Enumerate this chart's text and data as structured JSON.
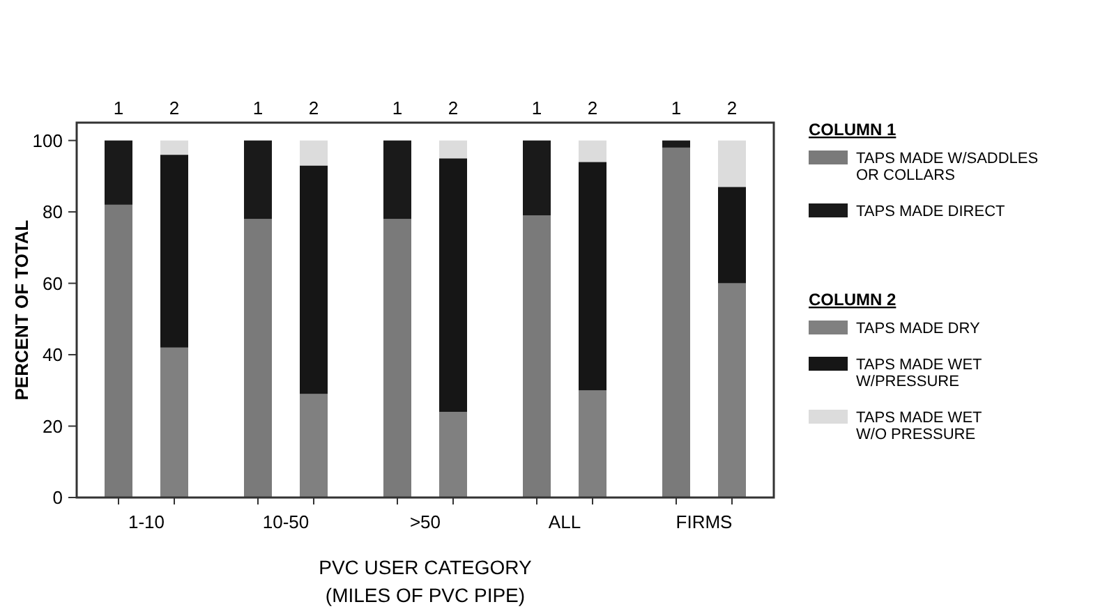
{
  "chart_data": {
    "type": "bar",
    "stacked": true,
    "ylabel": "PERCENT OF TOTAL",
    "xlabel": "PVC USER CATEGORY\n(MILES OF PVC PIPE)",
    "categories": [
      "1",
      "2",
      "1",
      "2",
      "1",
      "2",
      "1",
      "2",
      "1",
      "2"
    ],
    "annotations": [
      "1-10",
      "10-50",
      ">50",
      "ALL",
      "FIRMS"
    ],
    "legend_title": [
      "COLUMN 1",
      "COLUMN 2"
    ],
    "series": [
      {
        "name": "TAPS MADE W/SADDLES\nOR COLLARS",
        "color": "#7a7a7a",
        "values": [
          82,
          null,
          78,
          null,
          78,
          null,
          79,
          null,
          98,
          null
        ]
      },
      {
        "name": "TAPS MADE DIRECT",
        "color": "#1a1a1a",
        "values": [
          18,
          null,
          22,
          null,
          22,
          null,
          21,
          null,
          2,
          null
        ]
      },
      {
        "name": "TAPS MADE DRY",
        "color": "#808080",
        "values": [
          null,
          42,
          null,
          29,
          null,
          24,
          null,
          30,
          null,
          60
        ]
      },
      {
        "name": "TAPS MADE WET\nW/PRESSURE",
        "color": "#161616",
        "values": [
          null,
          54,
          null,
          64,
          null,
          71,
          null,
          64,
          null,
          27
        ]
      },
      {
        "name": "TAPS MADE WET\nW/O PRESSURE",
        "color": "#dcdcdc",
        "values": [
          null,
          4,
          null,
          7,
          null,
          5,
          null,
          6,
          null,
          13
        ]
      }
    ],
    "ylim": [
      0,
      105
    ],
    "yticks": [
      0,
      20,
      40,
      60,
      80,
      100
    ],
    "grid": false,
    "legend": "right"
  }
}
